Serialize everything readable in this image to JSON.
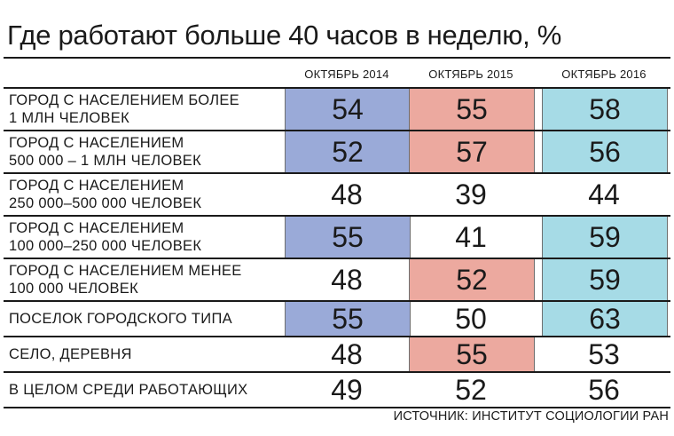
{
  "chart_data": {
    "type": "table",
    "title": "Где работают больше 40 часов в неделю, %",
    "columns": [
      "ОКТЯБРЬ 2014",
      "ОКТЯБРЬ 2015",
      "ОКТЯБРЬ 2016"
    ],
    "rows": [
      {
        "label": [
          "ГОРОД С НАСЕЛЕНИЕМ БОЛЕЕ",
          "1 МЛН ЧЕЛОВЕК"
        ],
        "values": [
          54,
          55,
          58
        ],
        "highlight": [
          true,
          true,
          true
        ]
      },
      {
        "label": [
          "ГОРОД С НАСЕЛЕНИЕМ",
          "500 000 – 1 МЛН ЧЕЛОВЕК"
        ],
        "values": [
          52,
          57,
          56
        ],
        "highlight": [
          true,
          true,
          true
        ]
      },
      {
        "label": [
          "ГОРОД С НАСЕЛЕНИЕМ",
          "250 000–500 000 ЧЕЛОВЕК"
        ],
        "values": [
          48,
          39,
          44
        ],
        "highlight": [
          false,
          false,
          false
        ]
      },
      {
        "label": [
          "ГОРОД С НАСЕЛЕНИЕМ",
          "100 000–250 000 ЧЕЛОВЕК"
        ],
        "values": [
          55,
          41,
          59
        ],
        "highlight": [
          true,
          false,
          true
        ]
      },
      {
        "label": [
          "ГОРОД С НАСЕЛЕНИЕМ МЕНЕЕ",
          "100 000 ЧЕЛОВЕК"
        ],
        "values": [
          48,
          52,
          59
        ],
        "highlight": [
          false,
          true,
          true
        ]
      },
      {
        "label": [
          "ПОСЕЛОК ГОРОДСКОГО ТИПА"
        ],
        "values": [
          55,
          50,
          63
        ],
        "highlight": [
          true,
          false,
          true
        ]
      },
      {
        "label": [
          "СЕЛО, ДЕРЕВНЯ"
        ],
        "values": [
          48,
          55,
          53
        ],
        "highlight": [
          false,
          true,
          false
        ]
      },
      {
        "label": [
          "В ЦЕЛОМ СРЕДИ РАБОТАЮЩИХ"
        ],
        "values": [
          49,
          52,
          56
        ],
        "highlight": [
          false,
          false,
          false
        ]
      }
    ],
    "highlight_colors": [
      "#9aaad8",
      "#eca99f",
      "#a6dbe6"
    ],
    "source": "ИСТОЧНИК: ИНСТИТУТ СОЦИОЛОГИИ РАН"
  }
}
